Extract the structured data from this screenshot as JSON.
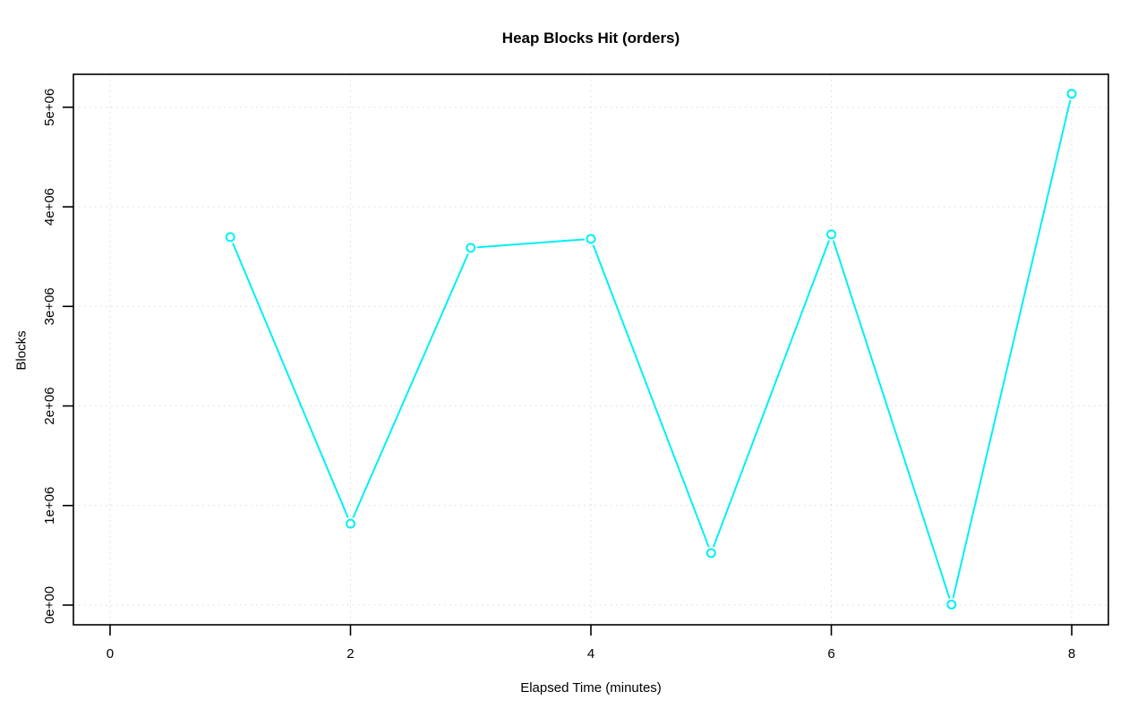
{
  "chart_data": {
    "type": "line",
    "title": "Heap Blocks Hit (orders)",
    "xlabel": "Elapsed Time (minutes)",
    "ylabel": "Blocks",
    "x": [
      1,
      2,
      3,
      4,
      5,
      6,
      7,
      8
    ],
    "series": [
      {
        "name": "heap-blocks-hit",
        "values": [
          3696000,
          818000,
          3588000,
          3678000,
          522000,
          3723000,
          5000,
          5135000
        ]
      }
    ],
    "xlim": [
      -0.305,
      8.305
    ],
    "ylim": [
      -198000,
      5331000
    ],
    "x_ticks": [
      0,
      2,
      4,
      6,
      8
    ],
    "x_tick_labels": [
      "0",
      "2",
      "4",
      "6",
      "8"
    ],
    "y_ticks": [
      0,
      1000000,
      2000000,
      3000000,
      4000000,
      5000000
    ],
    "y_tick_labels": [
      "0e+00",
      "1e+06",
      "2e+06",
      "3e+06",
      "4e+06",
      "5e+06"
    ],
    "grid": true,
    "legend": "none",
    "marker": "open-circle",
    "line_style": "points-and-lines-with-gaps",
    "colors": {
      "line": "#00f0f5",
      "grid": "#d9d9d9",
      "axis": "#000000",
      "text": "#000000",
      "background": "#ffffff"
    }
  }
}
